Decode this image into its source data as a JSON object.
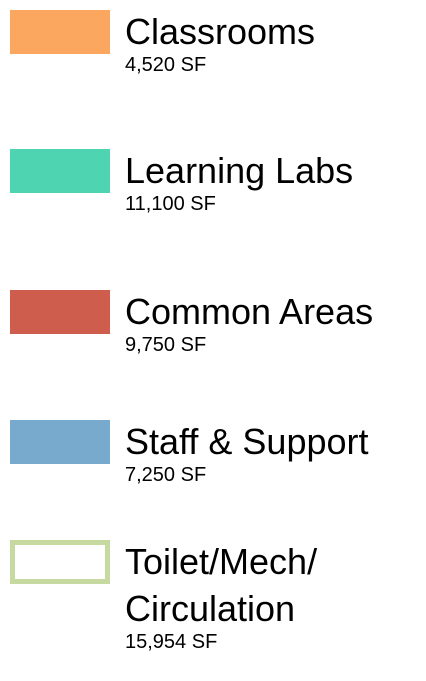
{
  "legend": {
    "items": [
      {
        "label": "Classrooms",
        "area": "4,520 SF",
        "color": "#fca75f"
      },
      {
        "label": "Learning Labs",
        "area": "11,100 SF",
        "color": "#4fd4b1"
      },
      {
        "label": "Common Areas",
        "area": "9,750 SF",
        "color": "#cf5d4e"
      },
      {
        "label": "Staff & Support",
        "area": "7,250 SF",
        "color": "#78aacd"
      },
      {
        "label": "Toilet/Mech/\nCirculation",
        "area": "15,954 SF",
        "color": "#c6d9a1",
        "outline": true
      }
    ]
  }
}
